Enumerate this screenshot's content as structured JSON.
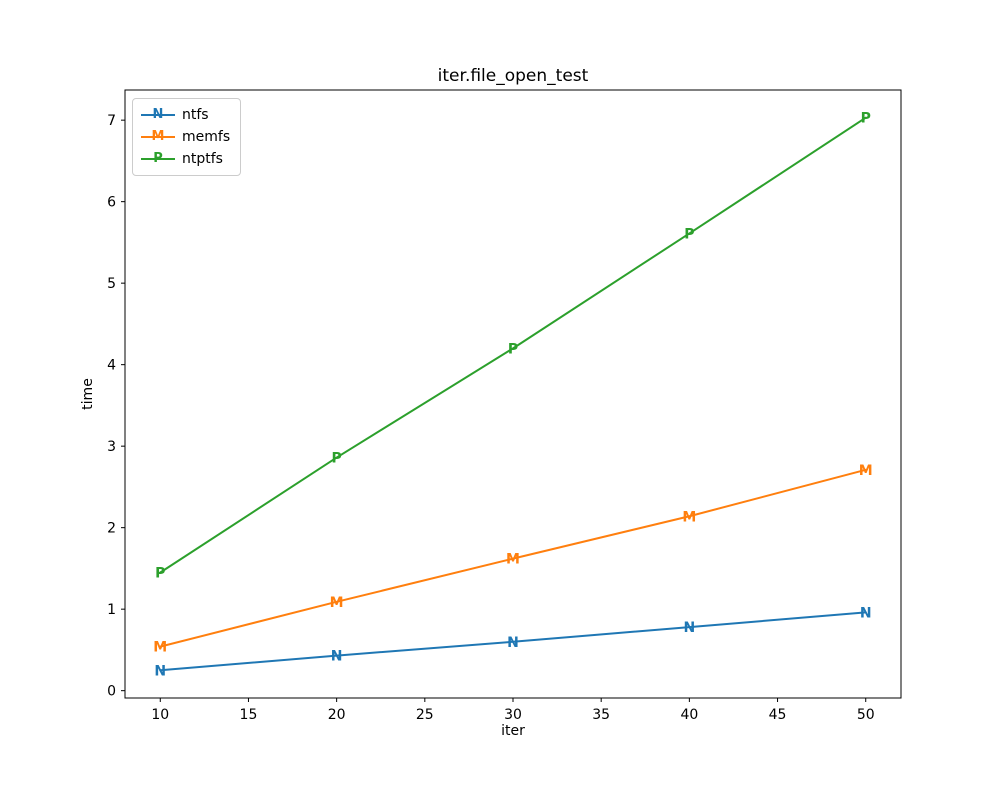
{
  "chart_data": {
    "type": "line",
    "title": "iter.file_open_test",
    "xlabel": "iter",
    "ylabel": "time",
    "x": [
      10,
      20,
      30,
      40,
      50
    ],
    "series": [
      {
        "name": "ntfs",
        "marker": "N",
        "color": "#1f77b4",
        "values": [
          0.25,
          0.43,
          0.6,
          0.78,
          0.96
        ]
      },
      {
        "name": "memfs",
        "marker": "M",
        "color": "#ff7f0e",
        "values": [
          0.54,
          1.09,
          1.62,
          2.14,
          2.71
        ]
      },
      {
        "name": "ntptfs",
        "marker": "P",
        "color": "#2ca02c",
        "values": [
          1.45,
          2.86,
          4.2,
          5.61,
          7.03
        ]
      }
    ],
    "xticks": [
      10,
      15,
      20,
      25,
      30,
      35,
      40,
      45,
      50
    ],
    "yticks": [
      0,
      1,
      2,
      3,
      4,
      5,
      6,
      7
    ],
    "xlim": [
      8,
      52
    ],
    "ylim": [
      -0.09,
      7.37
    ],
    "grid": false,
    "legend_position": "upper left",
    "axis_color": "#000000",
    "background_color": "#ffffff"
  }
}
